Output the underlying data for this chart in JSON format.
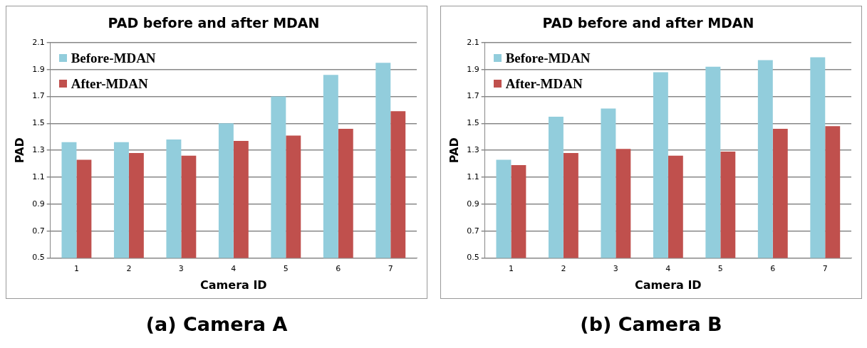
{
  "chart_data": [
    {
      "type": "bar",
      "title": "PAD before and after MDAN",
      "xlabel": "Camera ID",
      "ylabel": "PAD",
      "annotations": [
        "(a) Camera A"
      ],
      "categories": [
        "1",
        "2",
        "3",
        "4",
        "5",
        "6",
        "7"
      ],
      "series": [
        {
          "name": "Before-MDAN",
          "color": "#92cddc",
          "values": [
            1.36,
            1.36,
            1.38,
            1.5,
            1.7,
            1.86,
            1.95
          ]
        },
        {
          "name": "After-MDAN",
          "color": "#c0504d",
          "values": [
            1.23,
            1.28,
            1.26,
            1.37,
            1.41,
            1.46,
            1.59
          ]
        }
      ],
      "ylim": [
        0.5,
        2.1
      ],
      "yticks": [
        0.5,
        0.7,
        0.9,
        1.1,
        1.3,
        1.5,
        1.7,
        1.9,
        2.1
      ],
      "grid": "y",
      "legend": "top left"
    },
    {
      "type": "bar",
      "title": "PAD before and after MDAN",
      "xlabel": "Camera ID",
      "ylabel": "PAD",
      "annotations": [
        "(b) Camera B"
      ],
      "categories": [
        "1",
        "2",
        "3",
        "4",
        "5",
        "6",
        "7"
      ],
      "series": [
        {
          "name": "Before-MDAN",
          "color": "#92cddc",
          "values": [
            1.23,
            1.55,
            1.61,
            1.88,
            1.92,
            1.97,
            1.99
          ]
        },
        {
          "name": "After-MDAN",
          "color": "#c0504d",
          "values": [
            1.19,
            1.28,
            1.31,
            1.26,
            1.29,
            1.46,
            1.48
          ]
        }
      ],
      "ylim": [
        0.5,
        2.1
      ],
      "yticks": [
        0.5,
        0.7,
        0.9,
        1.1,
        1.3,
        1.5,
        1.7,
        1.9,
        2.1
      ],
      "grid": "y",
      "legend": "top left"
    }
  ]
}
